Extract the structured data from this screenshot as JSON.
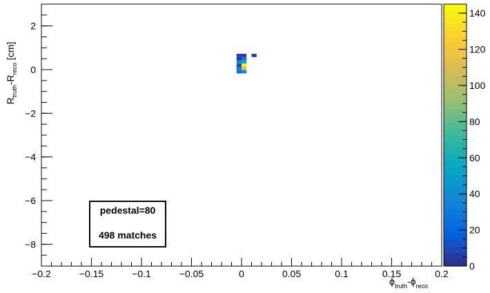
{
  "chart_data": {
    "type": "heatmap",
    "xlabel_main": "ϕ",
    "xlabel_sub1": "truth",
    "xlabel_mid": "-ϕ",
    "xlabel_sub2": "reco",
    "ylabel_main1": "R",
    "ylabel_sub1": "truth",
    "ylabel_mid": "-R",
    "ylabel_sub2": "reco",
    "ylabel_tail": " [cm]",
    "xlim": [
      -0.2,
      0.2
    ],
    "ylim": [
      -9,
      3
    ],
    "x_ticks": [
      {
        "value": -0.2,
        "label": "−0.2"
      },
      {
        "value": -0.15,
        "label": "−0.15"
      },
      {
        "value": -0.1,
        "label": "−0.1"
      },
      {
        "value": -0.05,
        "label": "−0.05"
      },
      {
        "value": 0,
        "label": "0"
      },
      {
        "value": 0.05,
        "label": "0.05"
      },
      {
        "value": 0.1,
        "label": "0.1"
      },
      {
        "value": 0.15,
        "label": "0.15"
      },
      {
        "value": 0.2,
        "label": "0.2"
      }
    ],
    "y_ticks": [
      {
        "value": 2,
        "label": "2"
      },
      {
        "value": 0,
        "label": "0"
      },
      {
        "value": -2,
        "label": "−2"
      },
      {
        "value": -4,
        "label": "−4"
      },
      {
        "value": -6,
        "label": "−6"
      },
      {
        "value": -8,
        "label": "−8"
      }
    ],
    "z_range": [
      0,
      145
    ],
    "z_ticks": [
      {
        "value": 0,
        "label": "0"
      },
      {
        "value": 20,
        "label": "20"
      },
      {
        "value": 40,
        "label": "40"
      },
      {
        "value": 60,
        "label": "60"
      },
      {
        "value": 80,
        "label": "80"
      },
      {
        "value": 100,
        "label": "100"
      },
      {
        "value": 120,
        "label": "120"
      },
      {
        "value": 140,
        "label": "140"
      }
    ],
    "bin_width": {
      "x": 0.005,
      "y": 0.15
    },
    "cells": [
      {
        "x": -0.0025,
        "y": 0.65,
        "z": 5
      },
      {
        "x": 0.0025,
        "y": 0.65,
        "z": 5
      },
      {
        "x": 0.0125,
        "y": 0.65,
        "z": 5
      },
      {
        "x": -0.0025,
        "y": 0.5,
        "z": 5
      },
      {
        "x": 0.0025,
        "y": 0.5,
        "z": 28
      },
      {
        "x": -0.0025,
        "y": 0.35,
        "z": 38
      },
      {
        "x": 0.0025,
        "y": 0.35,
        "z": 55
      },
      {
        "x": -0.0025,
        "y": 0.2,
        "z": 10
      },
      {
        "x": 0.0025,
        "y": 0.2,
        "z": 140
      },
      {
        "x": -0.0025,
        "y": 0.05,
        "z": 32
      },
      {
        "x": 0.0025,
        "y": 0.05,
        "z": 110
      },
      {
        "x": -0.0025,
        "y": -0.1,
        "z": 25
      },
      {
        "x": 0.0025,
        "y": -0.1,
        "z": 40
      }
    ],
    "annotations": [
      "pedestal=80",
      "498 matches"
    ],
    "grid": false,
    "colormap": [
      "#352a87",
      "#0363e1",
      "#1485d4",
      "#06a7c6",
      "#38b99e",
      "#92bf73",
      "#d9ba56",
      "#fcce2e",
      "#f9fb0e"
    ]
  }
}
